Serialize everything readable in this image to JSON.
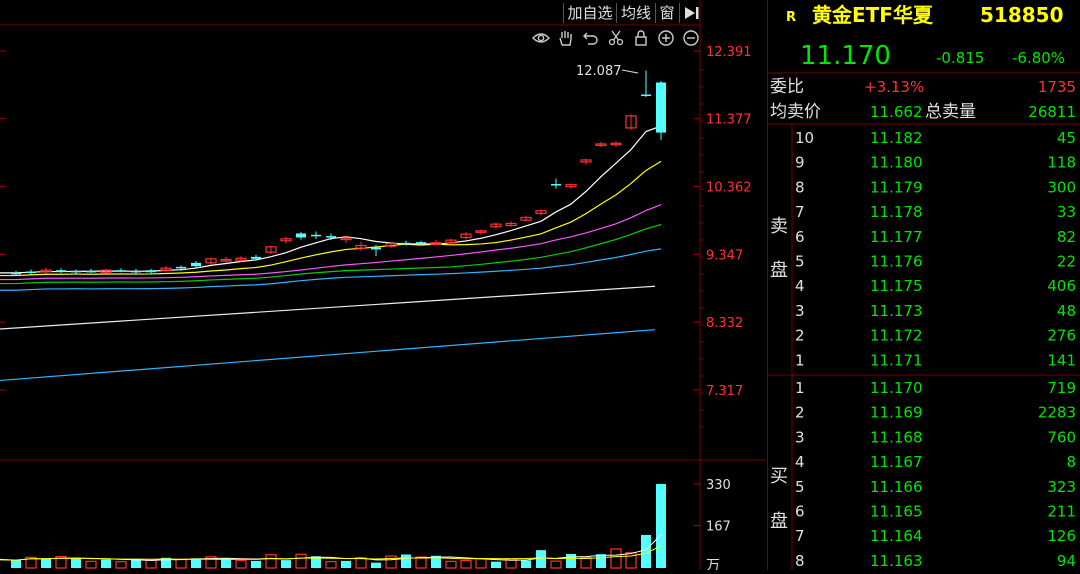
{
  "toolbar": {
    "add_watch": "加自选",
    "ma_line": "均线",
    "window": "窗"
  },
  "chart_tools": [
    "eye-icon",
    "hand-icon",
    "undo-icon",
    "scissors-icon",
    "lock-icon",
    "zoom-in-icon",
    "zoom-out-icon"
  ],
  "price_axis": {
    "ticks": [
      "12.391",
      "11.377",
      "10.362",
      "9.347",
      "8.332",
      "7.317"
    ]
  },
  "volume_axis": {
    "ticks": [
      "330",
      "167"
    ],
    "unit": "万"
  },
  "annotation": {
    "high_label": "12.087"
  },
  "colors": {
    "up": "#ff3232",
    "down": "#54ffff",
    "green": "#00e600",
    "label": "#e0e0e0",
    "yellow": "#ffff00"
  },
  "quote": {
    "badge": "R",
    "name": "黄金ETF华夏",
    "code": "518850",
    "price": "11.170",
    "change": "-0.815",
    "change_pct": "-6.80%",
    "ratio_label": "委比",
    "ratio_value": "+3.13%",
    "ratio_diff": "1735",
    "avg_ask_label": "均卖价",
    "avg_ask_value": "11.662",
    "total_ask_label": "总卖量",
    "total_ask_value": "26811",
    "sell_title": [
      "卖",
      "盘"
    ],
    "buy_title": [
      "买",
      "盘"
    ],
    "sell_levels": [
      {
        "level": "10",
        "price": "11.182",
        "volume": "45"
      },
      {
        "level": "9",
        "price": "11.180",
        "volume": "118"
      },
      {
        "level": "8",
        "price": "11.179",
        "volume": "300"
      },
      {
        "level": "7",
        "price": "11.178",
        "volume": "33"
      },
      {
        "level": "6",
        "price": "11.177",
        "volume": "82"
      },
      {
        "level": "5",
        "price": "11.176",
        "volume": "22"
      },
      {
        "level": "4",
        "price": "11.175",
        "volume": "406"
      },
      {
        "level": "3",
        "price": "11.173",
        "volume": "48"
      },
      {
        "level": "2",
        "price": "11.172",
        "volume": "276"
      },
      {
        "level": "1",
        "price": "11.171",
        "volume": "141"
      }
    ],
    "buy_levels": [
      {
        "level": "1",
        "price": "11.170",
        "volume": "719"
      },
      {
        "level": "2",
        "price": "11.169",
        "volume": "2283"
      },
      {
        "level": "3",
        "price": "11.168",
        "volume": "760"
      },
      {
        "level": "4",
        "price": "11.167",
        "volume": "8"
      },
      {
        "level": "5",
        "price": "11.166",
        "volume": "323"
      },
      {
        "level": "6",
        "price": "11.165",
        "volume": "211"
      },
      {
        "level": "7",
        "price": "11.164",
        "volume": "126"
      },
      {
        "level": "8",
        "price": "11.163",
        "volume": "94"
      }
    ]
  },
  "chart_data": {
    "type": "candlestick",
    "ylim": [
      7.0,
      12.6
    ],
    "candles": [
      {
        "o": 9.06,
        "h": 9.1,
        "l": 9.03,
        "c": 9.07,
        "up": false
      },
      {
        "o": 9.07,
        "h": 9.12,
        "l": 9.04,
        "c": 9.09,
        "up": false
      },
      {
        "o": 9.09,
        "h": 9.15,
        "l": 9.06,
        "c": 9.11,
        "up": true
      },
      {
        "o": 9.11,
        "h": 9.14,
        "l": 9.07,
        "c": 9.09,
        "up": false
      },
      {
        "o": 9.09,
        "h": 9.12,
        "l": 9.06,
        "c": 9.1,
        "up": false
      },
      {
        "o": 9.1,
        "h": 9.13,
        "l": 9.07,
        "c": 9.08,
        "up": false
      },
      {
        "o": 9.08,
        "h": 9.13,
        "l": 9.06,
        "c": 9.11,
        "up": true
      },
      {
        "o": 9.11,
        "h": 9.14,
        "l": 9.08,
        "c": 9.1,
        "up": false
      },
      {
        "o": 9.1,
        "h": 9.13,
        "l": 9.06,
        "c": 9.08,
        "up": false
      },
      {
        "o": 9.08,
        "h": 9.13,
        "l": 9.05,
        "c": 9.11,
        "up": false
      },
      {
        "o": 9.11,
        "h": 9.17,
        "l": 9.08,
        "c": 9.14,
        "up": true
      },
      {
        "o": 9.14,
        "h": 9.18,
        "l": 9.1,
        "c": 9.16,
        "up": false
      },
      {
        "o": 9.17,
        "h": 9.25,
        "l": 9.15,
        "c": 9.22,
        "up": false
      },
      {
        "o": 9.22,
        "h": 9.3,
        "l": 9.19,
        "c": 9.28,
        "up": true
      },
      {
        "o": 9.27,
        "h": 9.31,
        "l": 9.23,
        "c": 9.25,
        "up": true
      },
      {
        "o": 9.26,
        "h": 9.32,
        "l": 9.23,
        "c": 9.29,
        "up": true
      },
      {
        "o": 9.31,
        "h": 9.34,
        "l": 9.26,
        "c": 9.28,
        "up": false
      },
      {
        "o": 9.38,
        "h": 9.47,
        "l": 9.35,
        "c": 9.46,
        "up": true
      },
      {
        "o": 9.55,
        "h": 9.61,
        "l": 9.51,
        "c": 9.58,
        "up": true
      },
      {
        "o": 9.6,
        "h": 9.68,
        "l": 9.57,
        "c": 9.66,
        "up": false
      },
      {
        "o": 9.64,
        "h": 9.69,
        "l": 9.58,
        "c": 9.62,
        "up": false
      },
      {
        "o": 9.62,
        "h": 9.66,
        "l": 9.56,
        "c": 9.6,
        "up": false
      },
      {
        "o": 9.57,
        "h": 9.63,
        "l": 9.52,
        "c": 9.59,
        "up": true
      },
      {
        "o": 9.48,
        "h": 9.54,
        "l": 9.4,
        "c": 9.44,
        "up": true
      },
      {
        "o": 9.42,
        "h": 9.49,
        "l": 9.32,
        "c": 9.45,
        "up": false
      },
      {
        "o": 9.47,
        "h": 9.53,
        "l": 9.44,
        "c": 9.51,
        "up": true
      },
      {
        "o": 9.52,
        "h": 9.55,
        "l": 9.48,
        "c": 9.5,
        "up": false
      },
      {
        "o": 9.51,
        "h": 9.55,
        "l": 9.48,
        "c": 9.53,
        "up": false
      },
      {
        "o": 9.52,
        "h": 9.56,
        "l": 9.49,
        "c": 9.5,
        "up": true
      },
      {
        "o": 9.52,
        "h": 9.58,
        "l": 9.49,
        "c": 9.56,
        "up": true
      },
      {
        "o": 9.6,
        "h": 9.68,
        "l": 9.57,
        "c": 9.65,
        "up": true
      },
      {
        "o": 9.68,
        "h": 9.72,
        "l": 9.64,
        "c": 9.7,
        "up": true
      },
      {
        "o": 9.76,
        "h": 9.82,
        "l": 9.73,
        "c": 9.8,
        "up": true
      },
      {
        "o": 9.78,
        "h": 9.84,
        "l": 9.76,
        "c": 9.81,
        "up": true
      },
      {
        "o": 9.86,
        "h": 9.92,
        "l": 9.84,
        "c": 9.9,
        "up": true
      },
      {
        "o": 9.96,
        "h": 10.02,
        "l": 9.93,
        "c": 10.0,
        "up": true
      },
      {
        "o": 10.38,
        "h": 10.48,
        "l": 10.33,
        "c": 10.4,
        "up": false
      },
      {
        "o": 10.36,
        "h": 10.41,
        "l": 10.33,
        "c": 10.39,
        "up": true
      },
      {
        "o": 10.73,
        "h": 10.78,
        "l": 10.69,
        "c": 10.76,
        "up": true
      },
      {
        "o": 10.99,
        "h": 11.03,
        "l": 10.95,
        "c": 11.0,
        "up": true
      },
      {
        "o": 11.0,
        "h": 11.04,
        "l": 10.96,
        "c": 11.01,
        "up": true
      },
      {
        "o": 11.24,
        "h": 11.44,
        "l": 11.21,
        "c": 11.42,
        "up": true
      },
      {
        "o": 11.73,
        "h": 12.1,
        "l": 11.7,
        "c": 11.74,
        "up": false
      },
      {
        "o": 11.92,
        "h": 11.94,
        "l": 11.06,
        "c": 11.17,
        "up": false
      }
    ],
    "volume": [
      31,
      42,
      36,
      45,
      41,
      26,
      33,
      25,
      35,
      30,
      40,
      34,
      38,
      44,
      36,
      30,
      28,
      52,
      31,
      54,
      46,
      25,
      28,
      40,
      21,
      47,
      53,
      43,
      48,
      26,
      29,
      36,
      25,
      36,
      30,
      70,
      27,
      55,
      41,
      54,
      75,
      60,
      130,
      330
    ],
    "volume_up": [
      false,
      true,
      false,
      true,
      false,
      true,
      false,
      true,
      false,
      true,
      false,
      true,
      false,
      true,
      false,
      true,
      false,
      true,
      false,
      true,
      false,
      true,
      false,
      true,
      false,
      true,
      false,
      true,
      false,
      true,
      true,
      true,
      false,
      true,
      false,
      false,
      true,
      false,
      true,
      false,
      true,
      true,
      false,
      false
    ]
  }
}
